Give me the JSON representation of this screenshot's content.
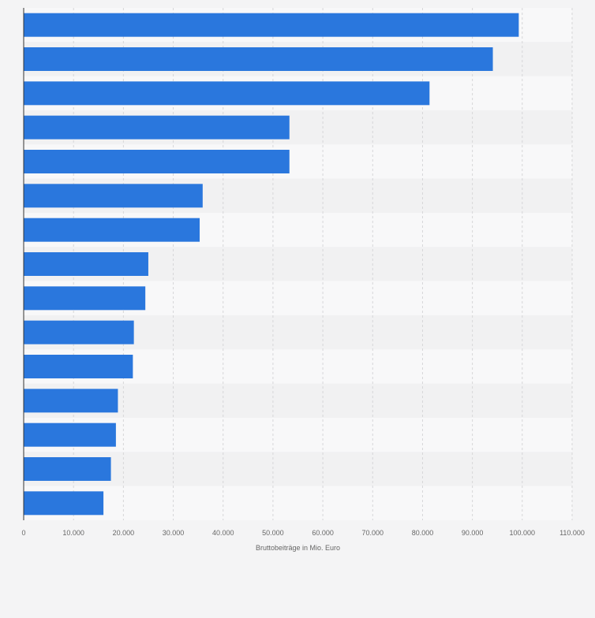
{
  "chart_data": {
    "type": "bar",
    "orientation": "horizontal",
    "title": "",
    "xlabel": "Bruttobeiträge in Mio. Euro",
    "ylabel": "",
    "xlim": [
      0,
      110000
    ],
    "xticks": [
      0,
      10000,
      20000,
      30000,
      40000,
      50000,
      60000,
      70000,
      80000,
      90000,
      100000,
      110000
    ],
    "xtick_labels": [
      "0",
      "10.000",
      "20.000",
      "30.000",
      "40.000",
      "50.000",
      "60.000",
      "70.000",
      "80.000",
      "90.000",
      "100.000",
      "110.000"
    ],
    "categories": [
      "",
      "",
      "",
      "",
      "",
      "",
      "",
      "",
      "",
      "",
      "",
      "",
      "",
      "",
      ""
    ],
    "values": [
      99300,
      94100,
      81400,
      53300,
      53300,
      35900,
      35300,
      25000,
      24400,
      22100,
      21900,
      18900,
      18500,
      17500,
      16000
    ],
    "grid": true,
    "colors": {
      "bar": "#2a77dd",
      "band_light": "#f8f8f9",
      "band_dark": "#f1f1f2",
      "grid": "#d6d6d8",
      "axis": "#333333",
      "tick_text": "#666666"
    }
  }
}
